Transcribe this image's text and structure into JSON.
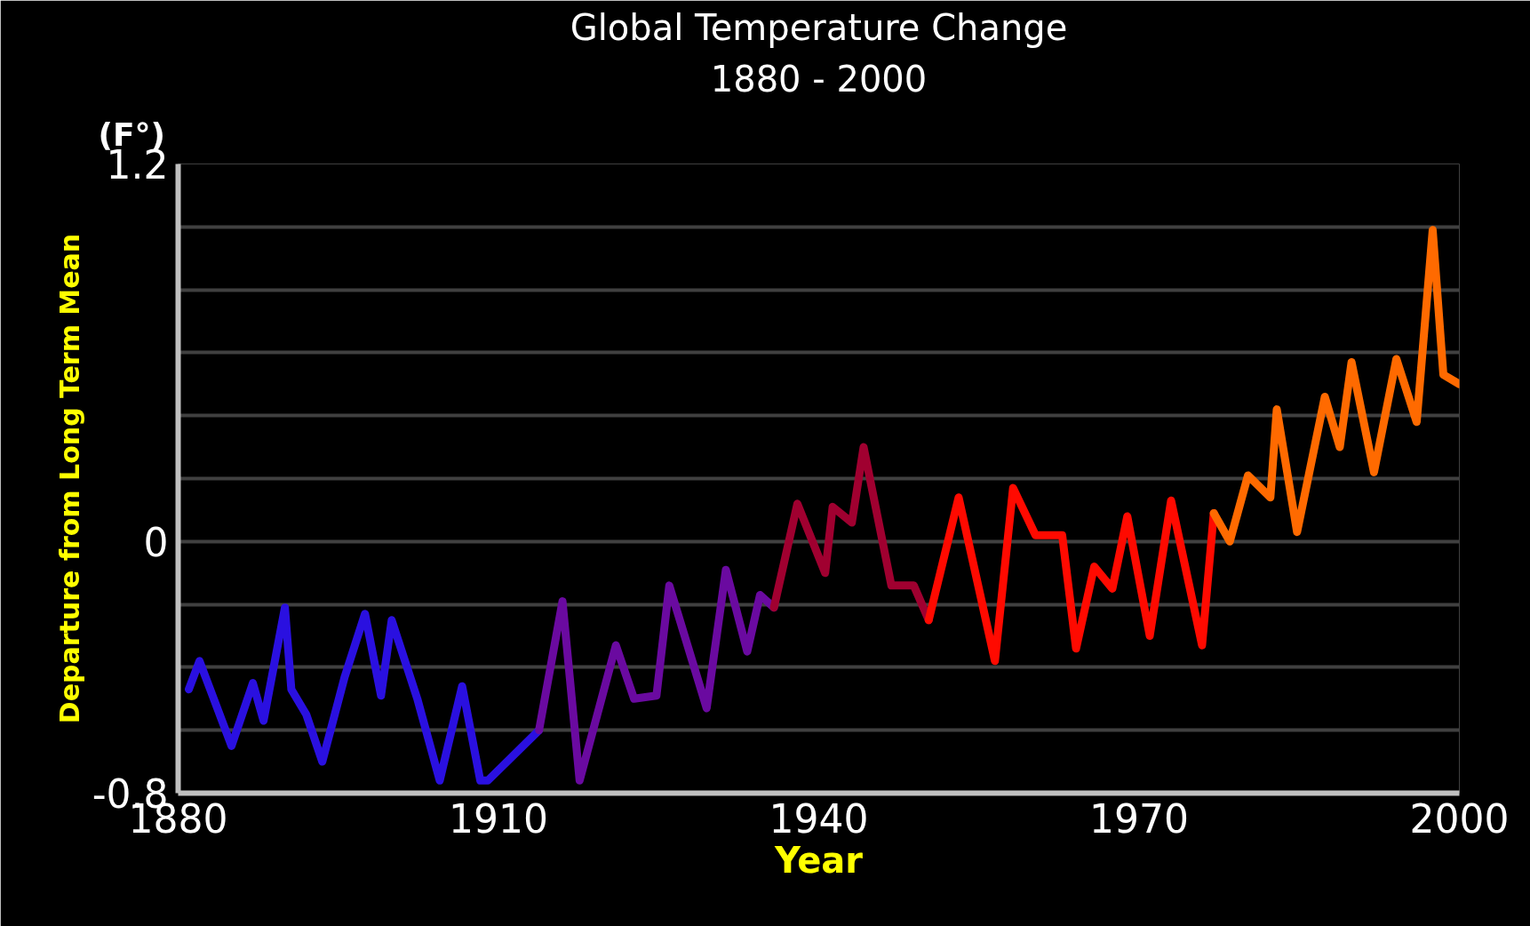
{
  "chart_data": {
    "type": "line",
    "title": "Global Temperature Change",
    "subtitle": "1880 - 2000",
    "xlabel": "Year",
    "ylabel": "Departure from Long Term Mean",
    "annotations": [
      "(F°)"
    ],
    "xlim": [
      1880,
      2000
    ],
    "xticks": [
      1880,
      1910,
      1940,
      1970,
      2000
    ],
    "ylim": [
      -0.8,
      1.2
    ],
    "yticks": [
      -0.8,
      {
        "value": -0.6,
        "label": null
      },
      {
        "value": -0.4,
        "label": null
      },
      {
        "value": -0.2,
        "label": null
      },
      0,
      {
        "value": 0.2,
        "label": null
      },
      {
        "value": 0.4,
        "label": null
      },
      {
        "value": 0.6,
        "label": null
      },
      {
        "value": 0.8,
        "label": null
      },
      {
        "value": 1.0,
        "label": null
      },
      1.2
    ],
    "grid": "y",
    "marker": "none",
    "line_style": "solid",
    "series": [
      {
        "color": "#2a10e0",
        "x": [
          1881,
          1882,
          1885,
          1887,
          1888,
          1890,
          1890.6,
          1892,
          1893.5,
          1895.6,
          1897.5,
          1899,
          1900,
          1902.4,
          1904.5,
          1906.6,
          1908.3,
          1909,
          1913.8
        ],
        "values": [
          -0.47,
          -0.38,
          -0.65,
          -0.45,
          -0.57,
          -0.21,
          -0.47,
          -0.55,
          -0.7,
          -0.43,
          -0.23,
          -0.49,
          -0.25,
          -0.5,
          -0.76,
          -0.46,
          -0.76,
          -0.76,
          -0.6
        ]
      },
      {
        "color": "#6a0aa0",
        "x": [
          1913.8,
          1916,
          1917.6,
          1921,
          1922.7,
          1924.8,
          1926,
          1929.5,
          1931.3,
          1933.3,
          1934.5,
          1935.8
        ],
        "values": [
          -0.6,
          -0.19,
          -0.76,
          -0.33,
          -0.5,
          -0.49,
          -0.14,
          -0.53,
          -0.09,
          -0.35,
          -0.17,
          -0.21
        ]
      },
      {
        "color": "#a00030",
        "x": [
          1935.8,
          1938,
          1940.6,
          1941.3,
          1943.1,
          1944.2,
          1946.8,
          1948.9,
          1950.3
        ],
        "values": [
          -0.21,
          0.12,
          -0.1,
          0.11,
          0.06,
          0.3,
          -0.14,
          -0.14,
          -0.25
        ]
      },
      {
        "color": "#ff0a00",
        "x": [
          1950.3,
          1953.1,
          1956.5,
          1958.2,
          1960.3,
          1962.8,
          1964.1,
          1965.8,
          1967.5,
          1968.9,
          1971,
          1973,
          1975.9,
          1977
        ],
        "values": [
          -0.25,
          0.14,
          -0.38,
          0.17,
          0.02,
          0.02,
          -0.34,
          -0.08,
          -0.15,
          0.08,
          -0.3,
          0.13,
          -0.33,
          0.09
        ]
      },
      {
        "color": "#ff6a00",
        "x": [
          1977,
          1978.5,
          1980.2,
          1982.3,
          1982.9,
          1984.8,
          1987.4,
          1988.8,
          1989.9,
          1992,
          1994.1,
          1996,
          1997.5,
          1998.5,
          2000
        ],
        "values": [
          0.09,
          0.0,
          0.21,
          0.14,
          0.42,
          0.03,
          0.46,
          0.3,
          0.57,
          0.22,
          0.58,
          0.38,
          0.99,
          0.53,
          0.5
        ]
      }
    ]
  }
}
